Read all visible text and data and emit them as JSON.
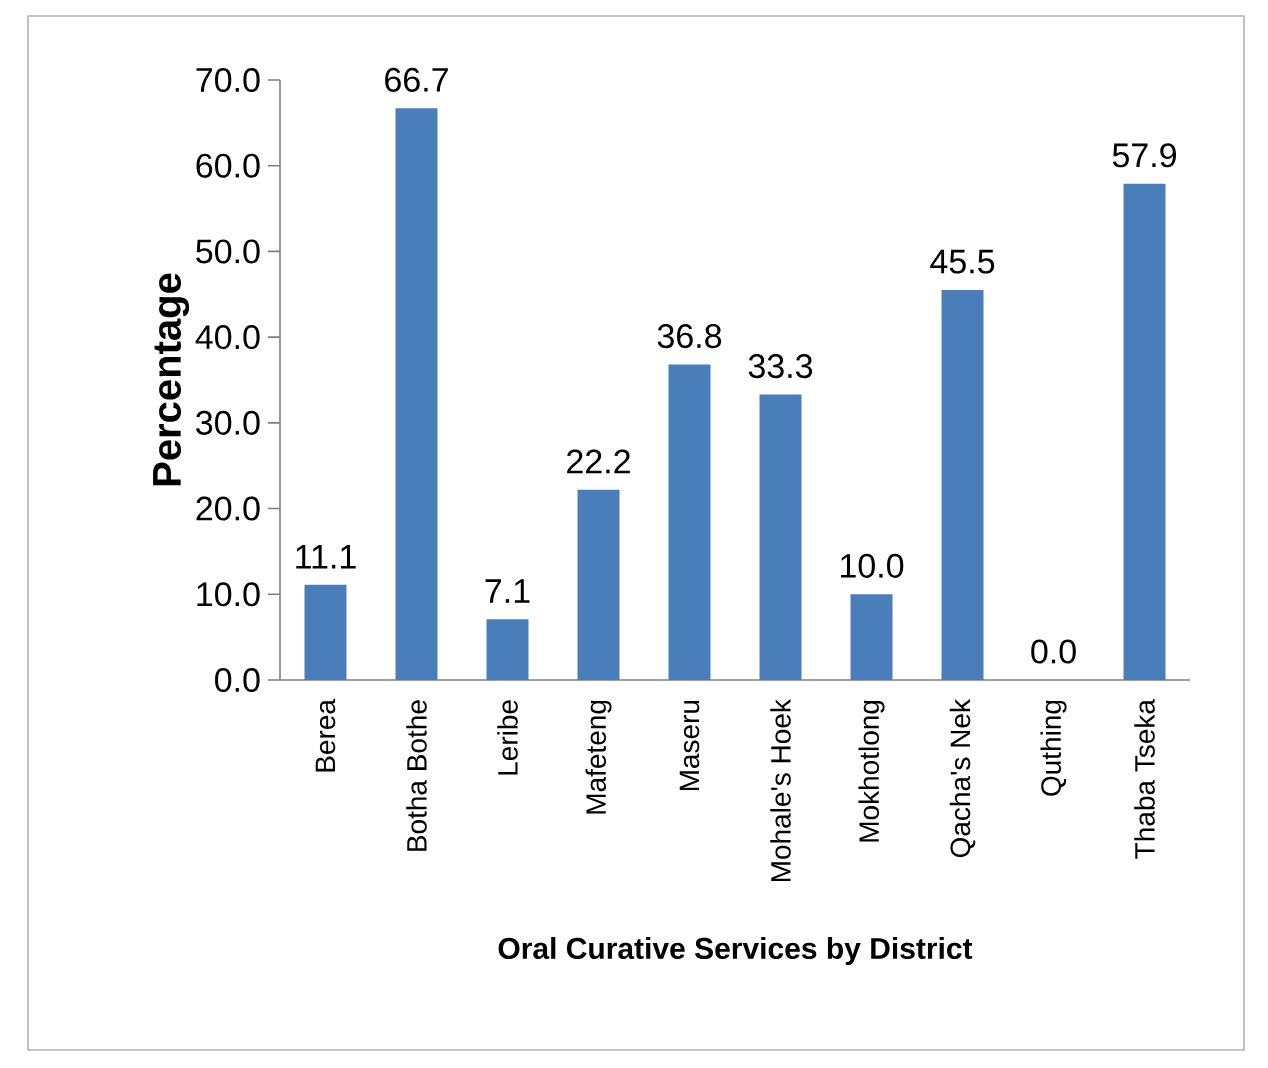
{
  "chart_data": {
    "type": "bar",
    "xlabel": "Oral Curative Services by District",
    "ylabel": "Percentage",
    "categories": [
      "Berea",
      "Botha Bothe",
      "Leribe",
      "Mafeteng",
      "Maseru",
      "Mohale's Hoek",
      "Mokhotlong",
      "Qacha's Nek",
      "Quthing",
      "Thaba Tseka"
    ],
    "values": [
      11.1,
      66.7,
      7.1,
      22.2,
      36.8,
      33.3,
      10.0,
      45.5,
      0.0,
      57.9
    ],
    "value_labels": [
      "11.1",
      "66.7",
      "7.1",
      "22.2",
      "36.8",
      "33.3",
      "10.0",
      "45.5",
      "0.0",
      "57.9"
    ],
    "color": "#4a7ebb",
    "ylim": [
      0,
      70
    ],
    "yticks": [
      {
        "value": 0,
        "label": "0.0"
      },
      {
        "value": 10,
        "label": "10.0"
      },
      {
        "value": 20,
        "label": "20.0"
      },
      {
        "value": 30,
        "label": "30.0"
      },
      {
        "value": 40,
        "label": "40.0"
      },
      {
        "value": 50,
        "label": "50.0"
      },
      {
        "value": 60,
        "label": "60.0"
      },
      {
        "value": 70,
        "label": "70.0"
      }
    ]
  }
}
